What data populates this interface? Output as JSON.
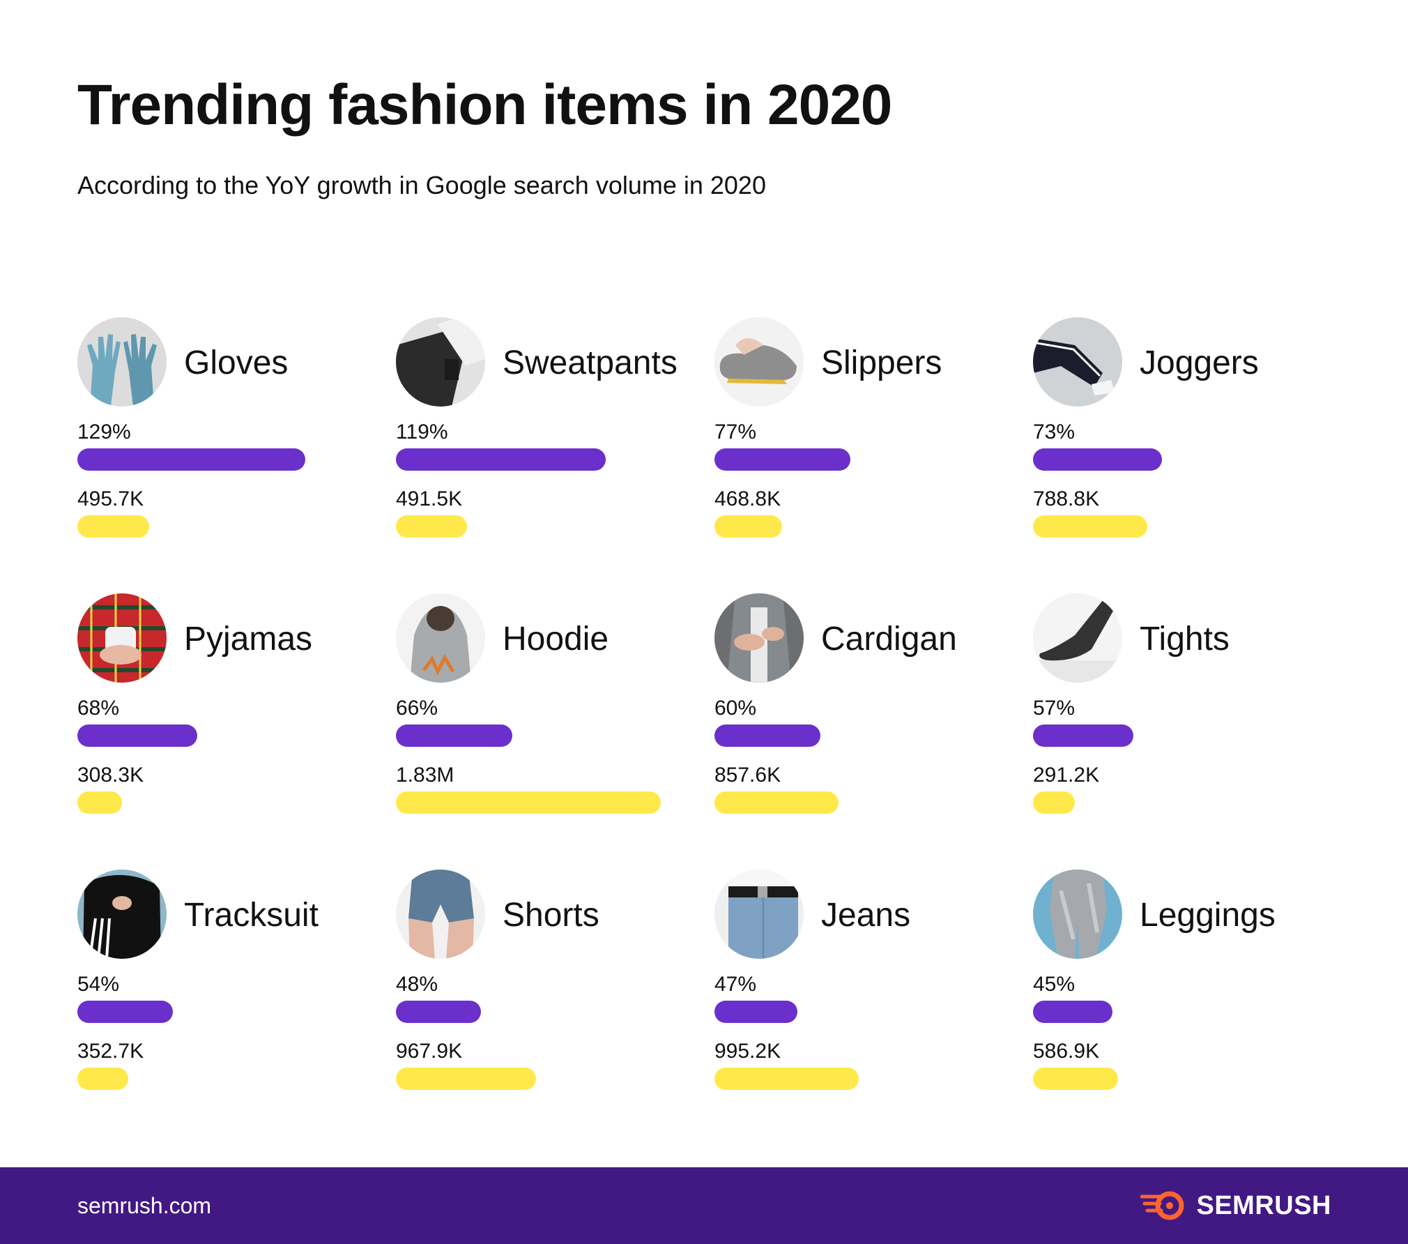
{
  "title": "Trending fashion items in 2020",
  "subtitle": "According to the YoY growth in Google search volume in 2020",
  "colors": {
    "growth": "#6b2fcc",
    "volume": "#ffe94a",
    "footer": "#421983",
    "brand_accent": "#ff642d"
  },
  "footer": {
    "url": "semrush.com",
    "brand": "SEMRUSH"
  },
  "chart_data": {
    "type": "bar",
    "categories": [
      "Gloves",
      "Sweatpants",
      "Slippers",
      "Joggers",
      "Pyjamas",
      "Hoodie",
      "Cardigan",
      "Tights",
      "Tracksuit",
      "Shorts",
      "Jeans",
      "Leggings"
    ],
    "series": [
      {
        "values": [
          129,
          119,
          77,
          73,
          68,
          66,
          60,
          57,
          54,
          48,
          47,
          45
        ],
        "labels": [
          "129%",
          "119%",
          "77%",
          "73%",
          "68%",
          "66%",
          "60%",
          "57%",
          "54%",
          "48%",
          "47%",
          "45%"
        ],
        "max": 150,
        "color": "#6b2fcc"
      },
      {
        "values": [
          495700,
          491500,
          468800,
          788800,
          308300,
          1830000,
          857600,
          291200,
          352700,
          967900,
          995200,
          586900
        ],
        "labels": [
          "495.7K",
          "491.5K",
          "468.8K",
          "788.8K",
          "308.3K",
          "1.83M",
          "857.6K",
          "291.2K",
          "352.7K",
          "967.9K",
          "995.2K",
          "586.9K"
        ],
        "max": 1830000,
        "color": "#ffe94a"
      }
    ],
    "item_icons": [
      "gloves-icon",
      "sweatpants-icon",
      "slippers-icon",
      "joggers-icon",
      "pyjamas-icon",
      "hoodie-icon",
      "cardigan-icon",
      "tights-icon",
      "tracksuit-icon",
      "shorts-icon",
      "jeans-icon",
      "leggings-icon"
    ],
    "legend": "none"
  }
}
